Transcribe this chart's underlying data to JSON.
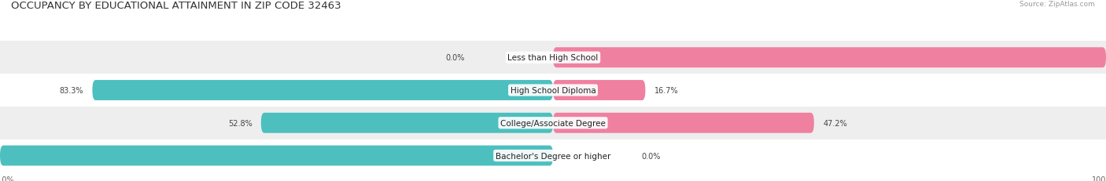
{
  "title": "OCCUPANCY BY EDUCATIONAL ATTAINMENT IN ZIP CODE 32463",
  "source": "Source: ZipAtlas.com",
  "categories": [
    "Less than High School",
    "High School Diploma",
    "College/Associate Degree",
    "Bachelor's Degree or higher"
  ],
  "owner_values": [
    0.0,
    83.3,
    52.8,
    100.0
  ],
  "renter_values": [
    100.0,
    16.7,
    47.2,
    0.0
  ],
  "owner_color": "#4DBFBF",
  "renter_color": "#F080A0",
  "bg_color": "#FFFFFF",
  "row_bg_colors": [
    "#EEEEEE",
    "#FFFFFF",
    "#EEEEEE",
    "#FFFFFF"
  ],
  "title_fontsize": 9.5,
  "label_fontsize": 7.5,
  "value_fontsize": 7.0,
  "bar_height": 0.62,
  "figsize": [
    14.06,
    2.32
  ],
  "dpi": 100
}
